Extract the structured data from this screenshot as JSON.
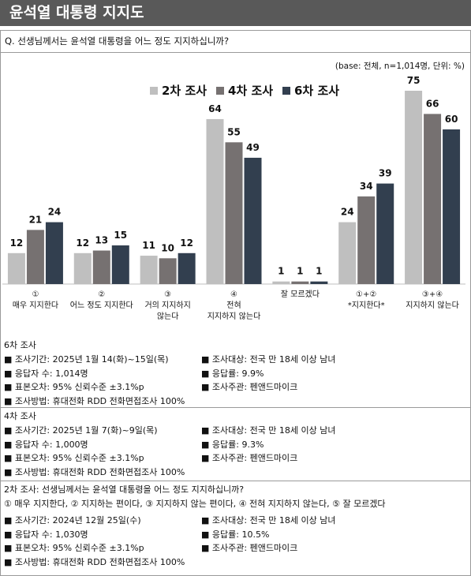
{
  "header": {
    "title": "윤석열 대통령 지지도"
  },
  "question": "Q. 선생님께서는 윤석열 대통령을 어느 정도 지지하십니까?",
  "base_note": "(base: 전체, n=1,014명, 단위: %)",
  "chart_data": {
    "type": "bar",
    "categories": [
      "①\n매우 지지한다",
      "②\n어느 정도 지지한다",
      "③\n거의 지지하지\n않는다",
      "④\n전혀\n지지하지 않는다",
      "잘 모르겠다",
      "①+②\n*지지한다*",
      "③+④\n지지하지 않는다"
    ],
    "series": [
      {
        "name": "2차 조사",
        "color": "#bfbfbf",
        "values": [
          12,
          12,
          11,
          64,
          1,
          24,
          75
        ]
      },
      {
        "name": "4차 조사",
        "color": "#767171",
        "values": [
          21,
          13,
          10,
          55,
          1,
          34,
          66
        ]
      },
      {
        "name": "6차 조사",
        "color": "#323f4f",
        "values": [
          24,
          15,
          12,
          49,
          1,
          39,
          60
        ]
      }
    ],
    "legend": "top"
  },
  "surveys": [
    {
      "title": "6차 조사",
      "items": [
        "조사기간: 2025년 1월 14(화)~15일(목)",
        "조사대상: 전국 만 18세 이상 남녀",
        "응답자 수: 1,014명",
        "응답률: 9.9%",
        "표본오차: 95% 신뢰수준 ±3.1%p",
        "조사주관: 펜앤드마이크",
        "조사방법: 휴대전화 RDD 전화면접조사 100%"
      ]
    },
    {
      "title": "4차 조사",
      "items": [
        "조사기간: 2025년 1월 7(화)~9일(목)",
        "조사대상: 전국 만 18세 이상 남녀",
        "응답자 수: 1,000명",
        "응답률: 9.3%",
        "표본오차: 95% 신뢰수준 ±3.1%p",
        "조사주관: 펜앤드마이크",
        "조사방법: 휴대전화 RDD 전화면접조사 100%"
      ]
    },
    {
      "title": "2차 조사: 선생님께서는 윤석열 대통령을 어느 정도 지지하십니까?",
      "subtitle": "① 매우 지지한다, ② 지지하는 편이다, ③ 지지하지 않는 편이다, ④ 전혀 지지하지 않는다,   ⑤ 잘 모르겠다",
      "items": [
        "조사기간: 2024년 12월 25일(수)",
        "조사대상: 전국 만 18세 이상 남녀",
        "응답자 수: 1,030명",
        "응답률: 10.5%",
        "표본오차: 95% 신뢰수준 ±3.1%p",
        "조사주관: 펜앤드마이크",
        "조사방법: 휴대전화 RDD 전화면접조사 100%"
      ]
    }
  ]
}
